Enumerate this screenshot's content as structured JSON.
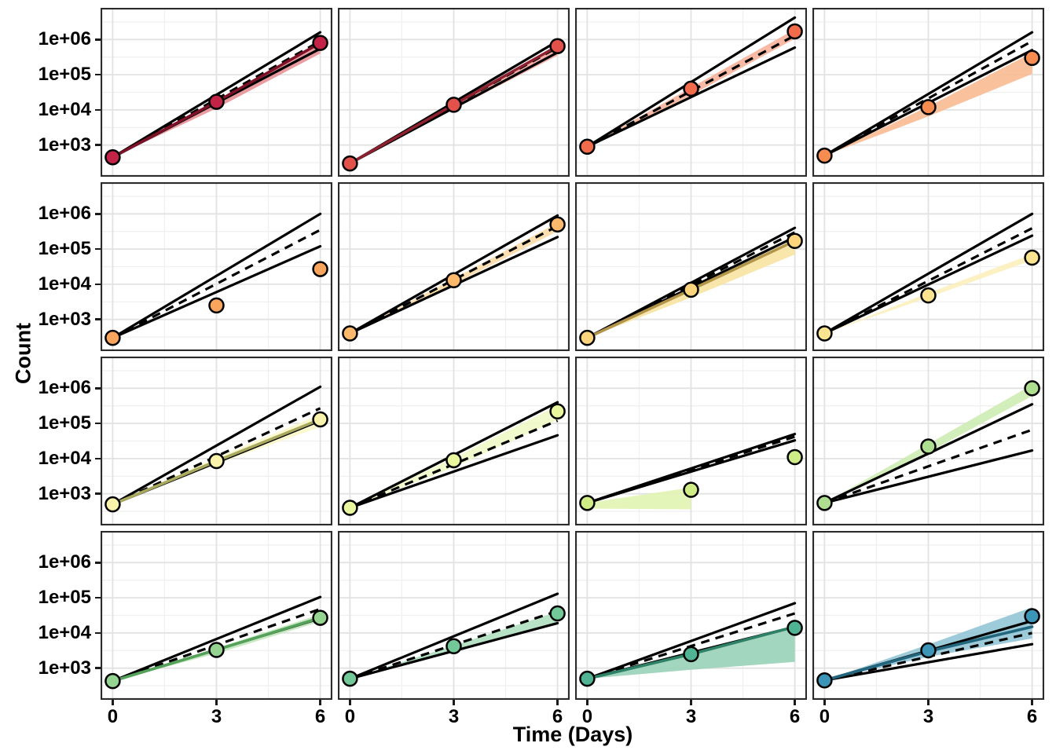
{
  "axes": {
    "y_title": "Count",
    "x_title": "Time (Days)"
  },
  "chart_data": {
    "type": "line",
    "layout": "4x4-facet-grid",
    "x": [
      0,
      3,
      6
    ],
    "xlabel": "Time (Days)",
    "ylabel": "Count",
    "y_scale": "log10",
    "ylim": [
      125,
      8000000
    ],
    "x_ticks": [
      "0",
      "3",
      "6"
    ],
    "y_ticks": [
      "1e+03",
      "1e+04",
      "1e+05",
      "1e+06"
    ],
    "grid": true,
    "legend": "none",
    "panels": [
      {
        "row": 1,
        "col": 1,
        "point_color": "#C32347",
        "trend_color": "#7C1128",
        "ribbon_color": "#E89296",
        "points": [
          450,
          17000,
          800000
        ],
        "envelope": {
          "upper": 1600000,
          "dashed": 900000,
          "lower": 550000
        },
        "ribbon": {
          "t": [
            0,
            3,
            6
          ],
          "lo": [
            450,
            11000,
            400000
          ],
          "hi": [
            450,
            17500,
            900000
          ]
        }
      },
      {
        "row": 1,
        "col": 2,
        "point_color": "#E2514A",
        "trend_color": "#8E2130",
        "ribbon_color": "#F2A79E",
        "points": [
          300,
          14000,
          650000
        ],
        "envelope": {
          "upper": 900000,
          "dashed": 600000,
          "lower": 430000
        },
        "ribbon": {
          "t": [
            0,
            3,
            6
          ],
          "lo": [
            300,
            10500,
            350000
          ],
          "hi": [
            300,
            14500,
            680000
          ]
        }
      },
      {
        "row": 1,
        "col": 3,
        "point_color": "#F26C4B",
        "trend_color": null,
        "ribbon_color": "#F7B39A",
        "points": [
          900,
          40000,
          1700000
        ],
        "envelope": {
          "upper": 4200000,
          "dashed": 1300000,
          "lower": 590000
        },
        "ribbon": {
          "t": [
            0,
            3,
            6
          ],
          "lo": [
            900,
            26000,
            1050000
          ],
          "hi": [
            900,
            43000,
            1950000
          ]
        }
      },
      {
        "row": 1,
        "col": 4,
        "point_color": "#F78C51",
        "trend_color": null,
        "ribbon_color": "#F9BA92",
        "points": [
          500,
          12000,
          300000
        ],
        "envelope": {
          "upper": 1600000,
          "dashed": 900000,
          "lower": 500000
        },
        "ribbon": {
          "t": [
            0,
            3,
            6
          ],
          "lo": [
            500,
            6500,
            105000
          ],
          "hi": [
            500,
            12500,
            420000
          ]
        }
      },
      {
        "row": 2,
        "col": 1,
        "point_color": "#FAA55E",
        "trend_color": null,
        "ribbon_color": "#FDD3A5",
        "points": [
          300,
          2500,
          27000
        ],
        "envelope": {
          "upper": 1000000,
          "dashed": 350000,
          "lower": 120000
        },
        "ribbon": null
      },
      {
        "row": 2,
        "col": 2,
        "point_color": "#FDB96B",
        "trend_color": null,
        "ribbon_color": "#FBDCA9",
        "points": [
          400,
          13000,
          500000
        ],
        "envelope": {
          "upper": 900000,
          "dashed": 450000,
          "lower": 220000
        },
        "ribbon": {
          "t": [
            0,
            3,
            6
          ],
          "lo": [
            400,
            10000,
            320000
          ],
          "hi": [
            400,
            14500,
            560000
          ]
        }
      },
      {
        "row": 2,
        "col": 3,
        "point_color": "#FDD47E",
        "trend_color": "#B3954A",
        "ribbon_color": "#F7E3A2",
        "points": [
          300,
          7000,
          170000
        ],
        "envelope": {
          "upper": 400000,
          "dashed": 300000,
          "lower": 220000
        },
        "ribbon": {
          "t": [
            0,
            3,
            6
          ],
          "lo": [
            300,
            4200,
            70000
          ],
          "hi": [
            300,
            7600,
            190000
          ]
        }
      },
      {
        "row": 2,
        "col": 4,
        "point_color": "#FBE490",
        "trend_color": null,
        "ribbon_color": "#FBF0BC",
        "points": [
          400,
          4800,
          57000
        ],
        "envelope": {
          "upper": 1000000,
          "dashed": 390000,
          "lower": 240000
        },
        "ribbon": {
          "t": [
            0,
            3,
            6
          ],
          "lo": [
            400,
            4200,
            48000
          ],
          "hi": [
            400,
            5600,
            72000
          ]
        }
      },
      {
        "row": 3,
        "col": 1,
        "point_color": "#FAF3AC",
        "trend_color": "#A8A85E",
        "ribbon_color": "#FBF7C9",
        "points": [
          500,
          8500,
          130000
        ],
        "envelope": {
          "upper": 1100000,
          "dashed": 270000,
          "lower": 120000
        },
        "ribbon": {
          "t": [
            0,
            3,
            6
          ],
          "lo": [
            500,
            7000,
            80000
          ],
          "hi": [
            500,
            10500,
            180000
          ]
        }
      },
      {
        "row": 3,
        "col": 2,
        "point_color": "#E9F69E",
        "trend_color": null,
        "ribbon_color": "#EFF9C7",
        "points": [
          400,
          9000,
          220000
        ],
        "envelope": {
          "upper": 400000,
          "dashed": 120000,
          "lower": 46000
        },
        "ribbon": {
          "t": [
            0,
            3,
            6
          ],
          "lo": [
            400,
            5600,
            125000
          ],
          "hi": [
            400,
            10500,
            320000
          ]
        }
      },
      {
        "row": 3,
        "col": 3,
        "point_color": "#CFEC86",
        "trend_color": null,
        "ribbon_color": "#E1F4B1",
        "points": [
          550,
          1300,
          11000
        ],
        "envelope": {
          "upper": 50000,
          "dashed": 42000,
          "lower": 33000
        },
        "ribbon": {
          "t": [
            0,
            3
          ],
          "lo": [
            380,
            360
          ],
          "hi": [
            550,
            1500
          ]
        }
      },
      {
        "row": 3,
        "col": 4,
        "point_color": "#AEDE90",
        "trend_color": null,
        "ribbon_color": "#CDECB4",
        "points": [
          550,
          22000,
          1000000
        ],
        "envelope": {
          "upper": 350000,
          "dashed": 66000,
          "lower": 17000
        },
        "ribbon": {
          "t": [
            0,
            3,
            6
          ],
          "lo": [
            550,
            15000,
            600000
          ],
          "hi": [
            550,
            26000,
            1250000
          ]
        }
      },
      {
        "row": 4,
        "col": 1,
        "point_color": "#94D390",
        "trend_color": "#55A35B",
        "ribbon_color": "#C3E7BE",
        "points": [
          430,
          3300,
          27000
        ],
        "envelope": {
          "upper": 105000,
          "dashed": 48000,
          "lower": 26000
        },
        "ribbon": {
          "t": [
            0,
            3,
            6
          ],
          "lo": [
            430,
            2600,
            21000
          ],
          "hi": [
            430,
            3700,
            34000
          ]
        }
      },
      {
        "row": 4,
        "col": 2,
        "point_color": "#72C896",
        "trend_color": null,
        "ribbon_color": "#AFDFBF",
        "points": [
          500,
          4200,
          36000
        ],
        "envelope": {
          "upper": 130000,
          "dashed": 42000,
          "lower": 19000
        },
        "ribbon": {
          "t": [
            0,
            3,
            6
          ],
          "lo": [
            500,
            2800,
            20000
          ],
          "hi": [
            500,
            4400,
            40000
          ]
        }
      },
      {
        "row": 4,
        "col": 3,
        "point_color": "#50B394",
        "trend_color": "#2E8066",
        "ribbon_color": "#99D2B8",
        "points": [
          500,
          2500,
          14000
        ],
        "trend": [
          500,
          2500,
          15000
        ],
        "envelope": {
          "upper": 70000,
          "dashed": 36000,
          "lower": 15000
        },
        "ribbon": {
          "t": [
            0,
            3,
            6
          ],
          "lo": [
            500,
            900,
            1500
          ],
          "hi": [
            500,
            2600,
            15000
          ]
        }
      },
      {
        "row": 4,
        "col": 4,
        "point_color": "#3C94B7",
        "trend_color": "#23677F",
        "ribbon_color": "#92C5D5",
        "points": [
          450,
          3200,
          30000
        ],
        "trend": [
          450,
          3000,
          15000
        ],
        "envelope": {
          "upper": 22000,
          "dashed": 10000,
          "lower": 4800
        },
        "ribbon": {
          "t": [
            0,
            3,
            6
          ],
          "lo": [
            450,
            2100,
            7000
          ],
          "hi": [
            450,
            4700,
            54000
          ]
        }
      }
    ]
  }
}
